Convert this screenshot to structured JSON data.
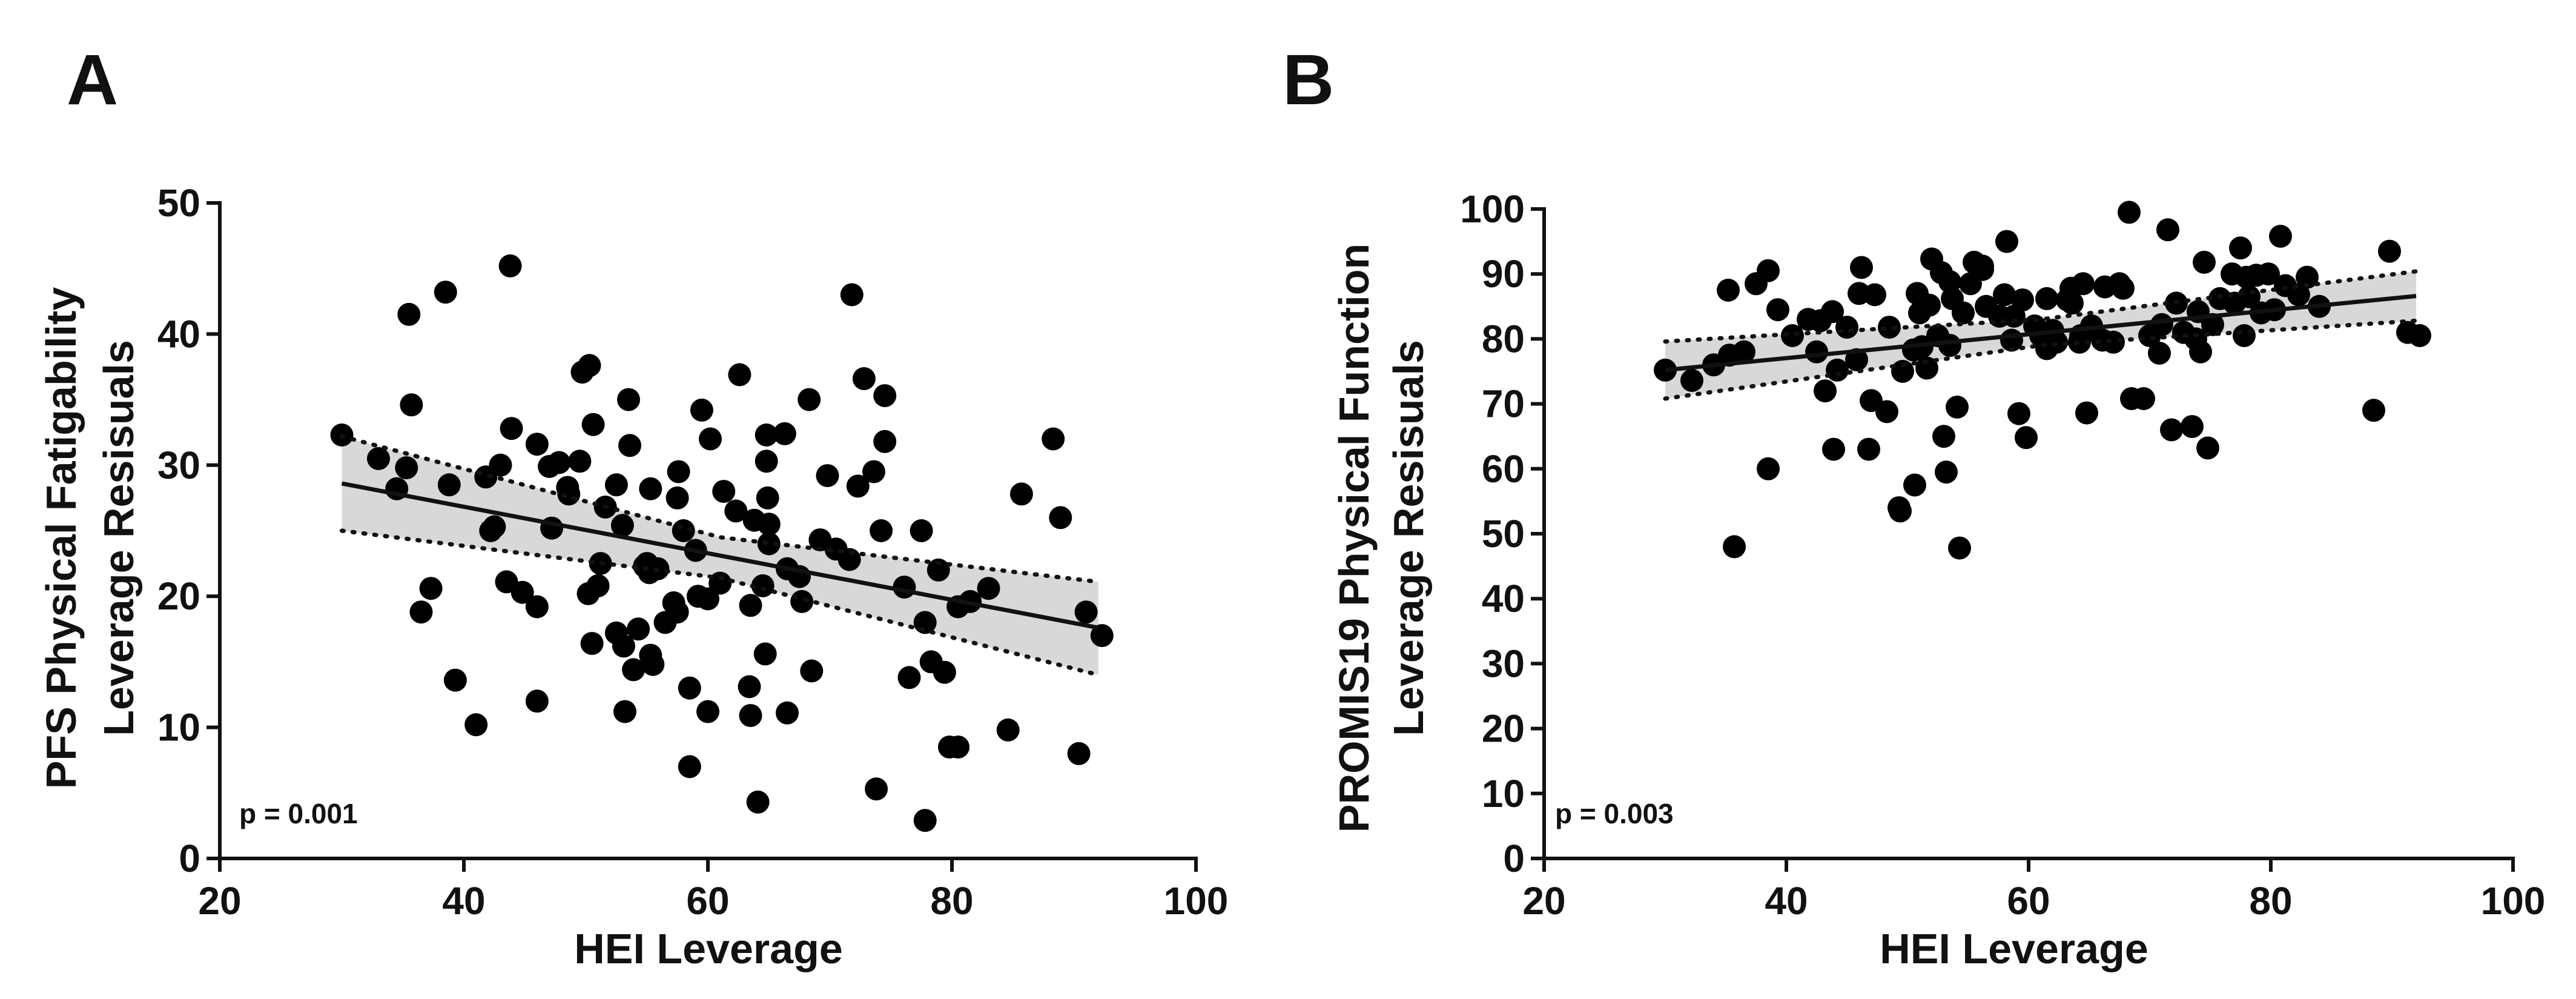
{
  "figure": {
    "panels": [
      "A",
      "B"
    ]
  },
  "chart_data": [
    {
      "type": "scatter",
      "panel_label": "A",
      "title": "",
      "xlabel": "HEI Leverage",
      "ylabel_lines": [
        "PFS Physical Fatigability",
        "Leverage Resisuals"
      ],
      "xlim": [
        20,
        100
      ],
      "ylim": [
        0,
        50
      ],
      "xticks": [
        20,
        40,
        60,
        80,
        100
      ],
      "yticks": [
        0,
        10,
        20,
        30,
        40,
        50
      ],
      "annotation": "p = 0.001",
      "regression": {
        "x": [
          30,
          92
        ],
        "y": [
          28.6,
          17.6
        ]
      },
      "ci_upper": {
        "x": [
          30,
          61,
          92
        ],
        "y": [
          32.2,
          24.5,
          21.1
        ]
      },
      "ci_lower": {
        "x": [
          30,
          61,
          92
        ],
        "y": [
          25.0,
          21.4,
          14.0
        ]
      },
      "points": [
        [
          30,
          32.3
        ],
        [
          33,
          30.5
        ],
        [
          34.5,
          28.2
        ],
        [
          35.5,
          41.5
        ],
        [
          35.7,
          34.6
        ],
        [
          35.3,
          29.8
        ],
        [
          36.5,
          18.8
        ],
        [
          37.3,
          20.6
        ],
        [
          38.5,
          43.2
        ],
        [
          38.8,
          28.5
        ],
        [
          39.3,
          13.6
        ],
        [
          41,
          10.2
        ],
        [
          41.8,
          29.1
        ],
        [
          42.2,
          25
        ],
        [
          42.5,
          25.3
        ],
        [
          43,
          30
        ],
        [
          43.5,
          21.1
        ],
        [
          43.8,
          45.2
        ],
        [
          43.9,
          32.8
        ],
        [
          44.8,
          20.3
        ],
        [
          46,
          19.2
        ],
        [
          46,
          12
        ],
        [
          46,
          31.6
        ],
        [
          47,
          29.9
        ],
        [
          47.2,
          25.2
        ],
        [
          47.8,
          30.2
        ],
        [
          48.5,
          28.3
        ],
        [
          48.6,
          27.8
        ],
        [
          49.5,
          30.3
        ],
        [
          49.7,
          37.1
        ],
        [
          50.2,
          20.2
        ],
        [
          50.3,
          37.6
        ],
        [
          50.5,
          16.4
        ],
        [
          50.6,
          33.1
        ],
        [
          51,
          20.8
        ],
        [
          51.2,
          22.5
        ],
        [
          51.6,
          26.8
        ],
        [
          52.5,
          28.5
        ],
        [
          52.5,
          17.2
        ],
        [
          53,
          25.4
        ],
        [
          53.1,
          16.2
        ],
        [
          53.2,
          11.2
        ],
        [
          53.5,
          35
        ],
        [
          53.6,
          31.5
        ],
        [
          53.9,
          14.4
        ],
        [
          54.3,
          17.5
        ],
        [
          54.8,
          22.3
        ],
        [
          55,
          22.5
        ],
        [
          55.2,
          21.8
        ],
        [
          55.3,
          15.5
        ],
        [
          55.3,
          28.2
        ],
        [
          55.5,
          14.8
        ],
        [
          55.9,
          22.1
        ],
        [
          56.5,
          18
        ],
        [
          57.2,
          19.5
        ],
        [
          57.5,
          27.5
        ],
        [
          57.5,
          18.8
        ],
        [
          57.6,
          29.5
        ],
        [
          58,
          25
        ],
        [
          58.5,
          7
        ],
        [
          58.5,
          13
        ],
        [
          59,
          23.5
        ],
        [
          59.2,
          20
        ],
        [
          59.5,
          34.2
        ],
        [
          60,
          19.8
        ],
        [
          60,
          11.2
        ],
        [
          60.2,
          32
        ],
        [
          61,
          21
        ],
        [
          61.3,
          28
        ],
        [
          62.3,
          26.5
        ],
        [
          62.6,
          36.9
        ],
        [
          63.4,
          13.1
        ],
        [
          63.5,
          10.9
        ],
        [
          63.5,
          19.3
        ],
        [
          63.8,
          25.8
        ],
        [
          64.1,
          4.3
        ],
        [
          64.5,
          20.8
        ],
        [
          64.7,
          15.6
        ],
        [
          64.8,
          30.3
        ],
        [
          64.8,
          32.3
        ],
        [
          64.9,
          27.5
        ],
        [
          65,
          25.5
        ],
        [
          65,
          24
        ],
        [
          66.3,
          32.4
        ],
        [
          66.5,
          11.1
        ],
        [
          66.5,
          22.1
        ],
        [
          67.5,
          21.5
        ],
        [
          67.7,
          19.6
        ],
        [
          68.3,
          35
        ],
        [
          68.5,
          14.3
        ],
        [
          69.2,
          24.3
        ],
        [
          69.8,
          29.2
        ],
        [
          70.5,
          23.6
        ],
        [
          71.8,
          43
        ],
        [
          71.6,
          22.8
        ],
        [
          72.3,
          28.4
        ],
        [
          72.8,
          36.6
        ],
        [
          73.6,
          29.5
        ],
        [
          73.8,
          5.3
        ],
        [
          74.2,
          25
        ],
        [
          74.5,
          31.8
        ],
        [
          74.5,
          35.3
        ],
        [
          76.1,
          20.7
        ],
        [
          76.5,
          13.8
        ],
        [
          77.5,
          25
        ],
        [
          77.8,
          2.9
        ],
        [
          77.8,
          18
        ],
        [
          78.3,
          15
        ],
        [
          78.9,
          22
        ],
        [
          79.4,
          14.2
        ],
        [
          79.8,
          8.5
        ],
        [
          80.5,
          8.5
        ],
        [
          80.5,
          19.2
        ],
        [
          81.5,
          19.6
        ],
        [
          83,
          20.6
        ],
        [
          84.6,
          9.8
        ],
        [
          85.7,
          27.8
        ],
        [
          88.3,
          32
        ],
        [
          88.9,
          26
        ],
        [
          90.4,
          8
        ],
        [
          91,
          18.8
        ],
        [
          92.3,
          17
        ]
      ]
    },
    {
      "type": "scatter",
      "panel_label": "B",
      "title": "",
      "xlabel": "HEI Leverage",
      "ylabel_lines": [
        "PROMIS19  Physical Function",
        "Leverage Resisuals"
      ],
      "xlim": [
        20,
        100
      ],
      "ylim": [
        0,
        100
      ],
      "xticks": [
        20,
        40,
        60,
        80,
        100
      ],
      "yticks": [
        0,
        10,
        20,
        30,
        40,
        50,
        60,
        70,
        80,
        90,
        100
      ],
      "annotation": "p = 0.003",
      "regression": {
        "x": [
          30,
          92
        ],
        "y": [
          75.2,
          86.6
        ]
      },
      "ci_upper": {
        "x": [
          30,
          61,
          92
        ],
        "y": [
          79.6,
          83.0,
          90.4
        ]
      },
      "ci_lower": {
        "x": [
          30,
          61,
          92
        ],
        "y": [
          70.8,
          79.0,
          82.8
        ]
      },
      "points": [
        [
          30,
          75.2
        ],
        [
          32.2,
          73.6
        ],
        [
          34,
          76
        ],
        [
          35.2,
          87.5
        ],
        [
          35.3,
          77.5
        ],
        [
          35.7,
          48
        ],
        [
          36.5,
          78
        ],
        [
          37.5,
          88.5
        ],
        [
          38.5,
          60
        ],
        [
          38.5,
          90.5
        ],
        [
          39.3,
          84.5
        ],
        [
          40.5,
          80.5
        ],
        [
          41.8,
          83
        ],
        [
          42.5,
          78
        ],
        [
          42.8,
          82.8
        ],
        [
          43.2,
          72
        ],
        [
          43.8,
          84.2
        ],
        [
          43.9,
          63
        ],
        [
          44.2,
          75.2
        ],
        [
          45,
          81.8
        ],
        [
          45.8,
          76.8
        ],
        [
          46,
          87
        ],
        [
          46.2,
          91
        ],
        [
          46.8,
          63
        ],
        [
          47,
          70.5
        ],
        [
          47.3,
          86.8
        ],
        [
          48.3,
          68.8
        ],
        [
          48.5,
          81.8
        ],
        [
          49.3,
          54
        ],
        [
          49.4,
          53.5
        ],
        [
          49.6,
          75
        ],
        [
          50.5,
          78.3
        ],
        [
          50.6,
          57.5
        ],
        [
          50.8,
          87
        ],
        [
          51,
          84
        ],
        [
          51.2,
          78.8
        ],
        [
          51.6,
          75.5
        ],
        [
          51.8,
          85.2
        ],
        [
          52,
          92.3
        ],
        [
          52.5,
          80.5
        ],
        [
          52.8,
          90.2
        ],
        [
          53,
          65
        ],
        [
          53.2,
          59.5
        ],
        [
          53.5,
          88.8
        ],
        [
          53.5,
          79
        ],
        [
          53.7,
          86.2
        ],
        [
          54.1,
          69.5
        ],
        [
          54.3,
          47.8
        ],
        [
          54.6,
          84
        ],
        [
          55.2,
          88.5
        ],
        [
          55.5,
          91.8
        ],
        [
          56.2,
          90.7
        ],
        [
          56.2,
          91.2
        ],
        [
          56.5,
          85
        ],
        [
          57.6,
          83.5
        ],
        [
          58,
          86.8
        ],
        [
          58.2,
          95
        ],
        [
          58.6,
          79.8
        ],
        [
          58.8,
          83.5
        ],
        [
          59.2,
          68.5
        ],
        [
          59.5,
          86
        ],
        [
          59.8,
          64.8
        ],
        [
          60.5,
          82
        ],
        [
          61,
          80.5
        ],
        [
          61.5,
          86.2
        ],
        [
          61.5,
          78.5
        ],
        [
          62,
          81.3
        ],
        [
          62.3,
          79.5
        ],
        [
          63.2,
          86
        ],
        [
          63.5,
          87.8
        ],
        [
          63.6,
          85.5
        ],
        [
          64.2,
          79.5
        ],
        [
          64.3,
          80.5
        ],
        [
          64.5,
          88.5
        ],
        [
          64.8,
          68.6
        ],
        [
          65.2,
          82
        ],
        [
          66.1,
          79.8
        ],
        [
          66.3,
          88
        ],
        [
          67,
          79.5
        ],
        [
          67.5,
          88.5
        ],
        [
          67.8,
          87.8
        ],
        [
          68.3,
          99.5
        ],
        [
          68.5,
          70.8
        ],
        [
          69.5,
          70.8
        ],
        [
          70,
          80.5
        ],
        [
          70.8,
          77.8
        ],
        [
          71,
          82.2
        ],
        [
          71.5,
          96.8
        ],
        [
          71.8,
          66
        ],
        [
          72.2,
          85.5
        ],
        [
          72.8,
          81
        ],
        [
          73.5,
          66.5
        ],
        [
          73.8,
          80
        ],
        [
          74,
          84.2
        ],
        [
          74.2,
          78
        ],
        [
          74.5,
          91.8
        ],
        [
          74.8,
          63.2
        ],
        [
          75.2,
          82.2
        ],
        [
          75.8,
          86.2
        ],
        [
          76.8,
          90
        ],
        [
          77,
          85.5
        ],
        [
          77.5,
          94
        ],
        [
          77.8,
          80.5
        ],
        [
          78,
          89.5
        ],
        [
          78.2,
          86.5
        ],
        [
          78.8,
          89.8
        ],
        [
          79.2,
          84
        ],
        [
          79.8,
          90
        ],
        [
          80.3,
          84.5
        ],
        [
          80.8,
          95.8
        ],
        [
          81.2,
          88.2
        ],
        [
          82.3,
          86.8
        ],
        [
          83,
          89.5
        ],
        [
          84,
          85
        ],
        [
          88.5,
          69
        ],
        [
          89.8,
          93.5
        ],
        [
          91.3,
          81
        ],
        [
          92.3,
          80.5
        ]
      ]
    }
  ]
}
